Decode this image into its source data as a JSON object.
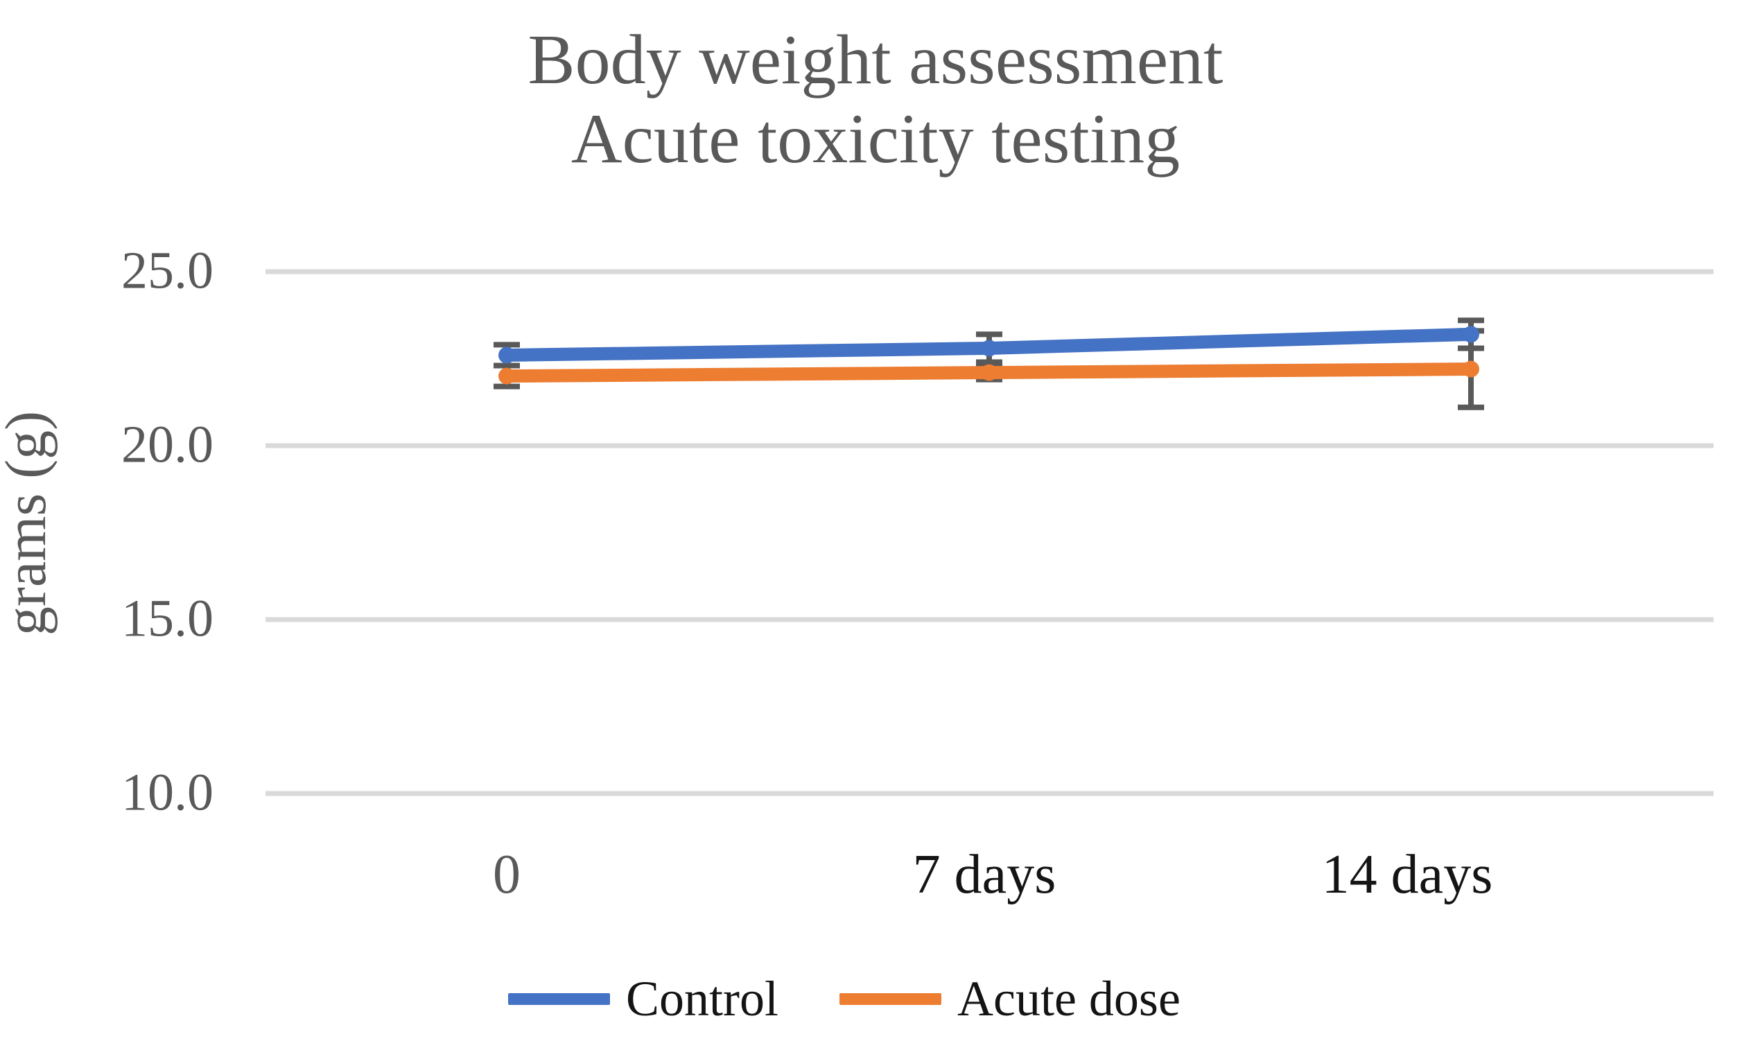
{
  "title": {
    "line1": "Body weight assessment",
    "line2": "Acute toxicity testing"
  },
  "y_axis": {
    "label": "grams (g)",
    "tick_labels": [
      "25.0",
      "20.0",
      "15.0",
      "10.0"
    ]
  },
  "x_axis": {
    "tick_labels": [
      "0",
      "7 days",
      "14 days"
    ]
  },
  "legend": {
    "items": [
      {
        "label": "Control",
        "color": "#4472C4"
      },
      {
        "label": "Acute dose",
        "color": "#ED7D31"
      }
    ]
  },
  "colors": {
    "control": "#4472C4",
    "acute_dose": "#ED7D31",
    "gridline": "#D9D9D9",
    "axis_text": "#595959",
    "title_text": "#595959",
    "error_bar": "#595959",
    "category_text": "#141414",
    "background": "#FFFFFF"
  },
  "chart_data": {
    "type": "line",
    "title": "Body weight assessment — Acute toxicity testing",
    "ylabel": "grams (g)",
    "categories": [
      "0",
      "7 days",
      "14 days"
    ],
    "series": [
      {
        "name": "Control",
        "values": [
          22.6,
          22.8,
          23.2
        ],
        "error": [
          0.3,
          0.4,
          0.4
        ],
        "color": "#4472C4"
      },
      {
        "name": "Acute dose",
        "values": [
          22.0,
          22.1,
          22.2
        ],
        "error": [
          0.3,
          0.2,
          1.1
        ],
        "color": "#ED7D31"
      }
    ],
    "yticks": [
      {
        "label": "25.0",
        "value": 25.0
      },
      {
        "label": "20.0",
        "value": 20.0
      },
      {
        "label": "15.0",
        "value": 15.0
      },
      {
        "label": "10.0",
        "value": 10.0
      }
    ],
    "ylim": [
      10.0,
      25.0
    ],
    "grid": true,
    "error_bars": true,
    "markers": true,
    "legend_position": "bottom"
  }
}
